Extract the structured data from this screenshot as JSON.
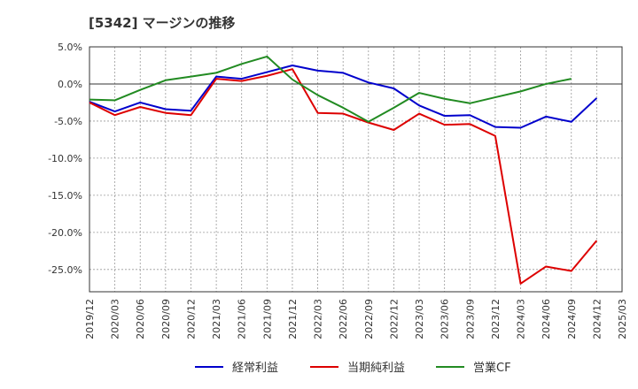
{
  "chart_data": {
    "type": "line",
    "title": "[5342]  マージンの推移",
    "x": [
      "2019/12",
      "2020/03",
      "2020/06",
      "2020/09",
      "2020/12",
      "2021/03",
      "2021/06",
      "2021/09",
      "2021/12",
      "2022/03",
      "2022/06",
      "2022/09",
      "2022/12",
      "2023/03",
      "2023/06",
      "2023/09",
      "2023/12",
      "2024/03",
      "2024/06",
      "2024/09",
      "2024/12",
      "2025/03"
    ],
    "y_ticks": [
      "5.0%",
      "0.0%",
      "-5.0%",
      "-10.0%",
      "-15.0%",
      "-20.0%",
      "-25.0%"
    ],
    "y_tick_values": [
      5,
      0,
      -5,
      -10,
      -15,
      -20,
      -25
    ],
    "ylim": [
      -28,
      5
    ],
    "grid": true,
    "legend_position": "bottom",
    "series": [
      {
        "name": "経常利益",
        "color": "#0000cc",
        "values": [
          -2.4,
          -3.7,
          -2.5,
          -3.4,
          -3.6,
          1.0,
          0.7,
          1.6,
          2.5,
          1.8,
          1.5,
          0.2,
          -0.6,
          -2.9,
          -4.3,
          -4.2,
          -5.8,
          -5.9,
          -4.4,
          -5.1,
          -1.9,
          null
        ]
      },
      {
        "name": "当期純利益",
        "color": "#dd0000",
        "values": [
          -2.5,
          -4.2,
          -3.1,
          -3.9,
          -4.2,
          0.7,
          0.4,
          1.1,
          2.0,
          -3.9,
          -4.0,
          -5.2,
          -6.2,
          -4.0,
          -5.5,
          -5.4,
          -7.0,
          -26.9,
          -24.6,
          -25.2,
          -21.1,
          null
        ]
      },
      {
        "name": "営業CF",
        "color": "#228b22",
        "values": [
          -2.1,
          -2.2,
          -0.8,
          0.5,
          1.0,
          1.5,
          2.7,
          3.7,
          0.6,
          -1.5,
          -3.2,
          -5.1,
          -3.2,
          -1.2,
          -2.0,
          -2.6,
          -1.8,
          -1.0,
          0.0,
          0.7,
          null,
          null
        ]
      }
    ]
  }
}
